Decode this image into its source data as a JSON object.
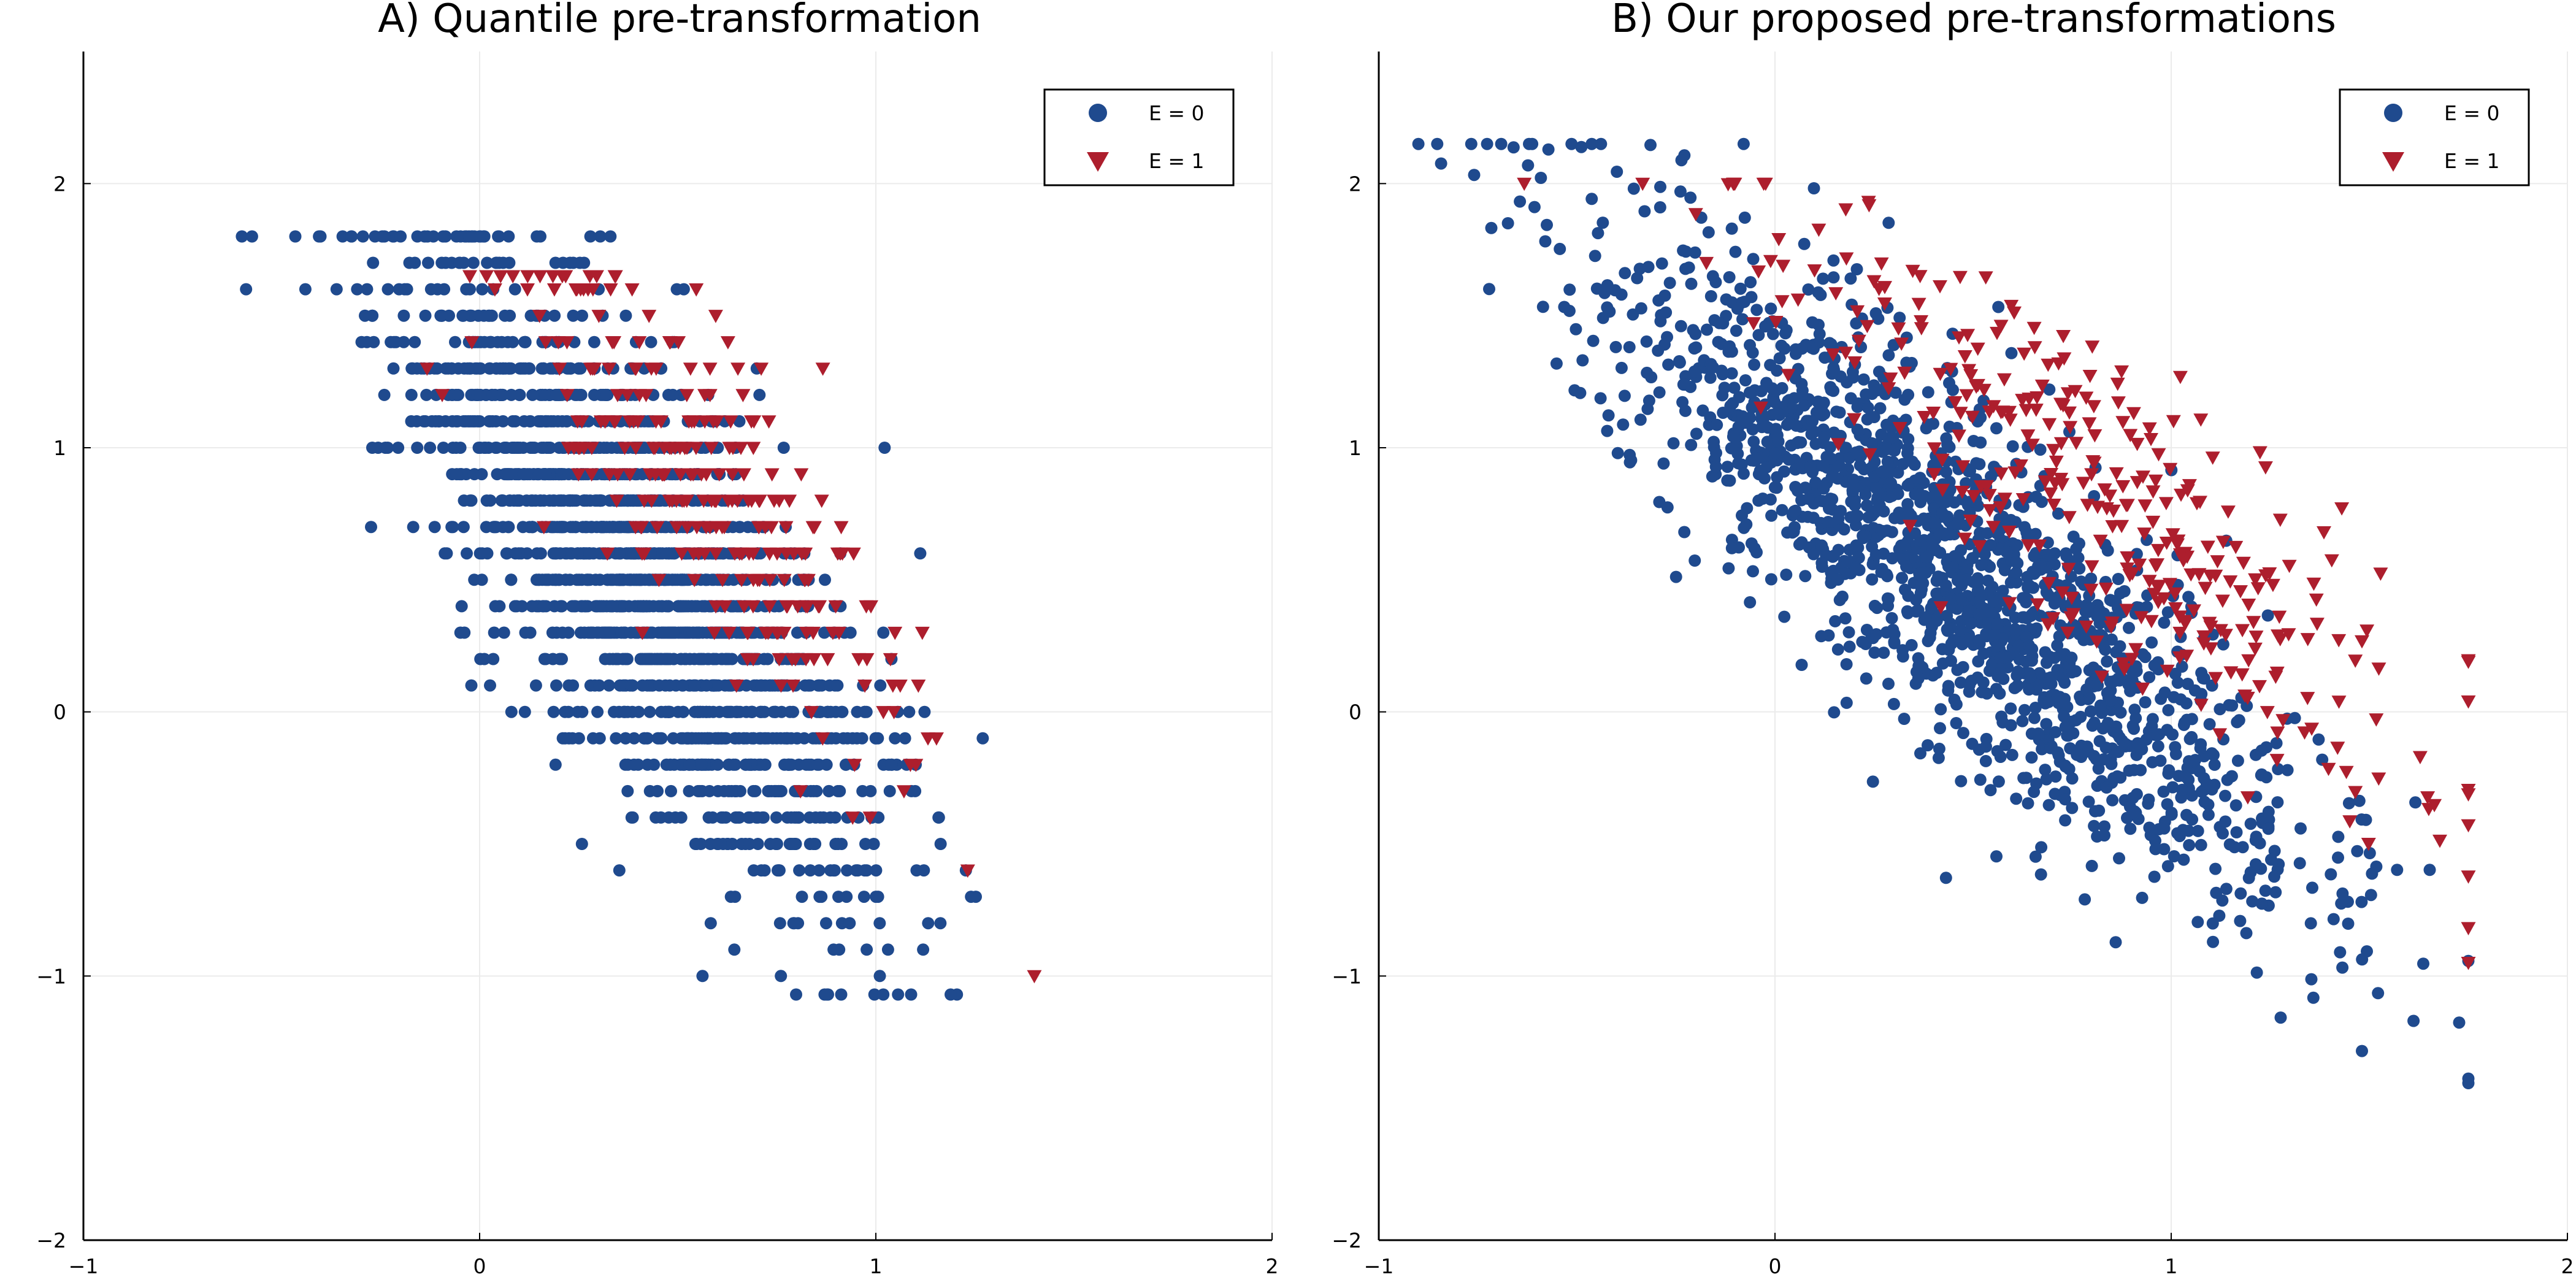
{
  "figure": {
    "background": "#ffffff"
  },
  "colors": {
    "e0": "#1f4a8e",
    "e1": "#ad1e2d"
  },
  "chart_data": [
    {
      "type": "scatter",
      "title": "A) Quantile pre-transformation",
      "xlabel": "",
      "ylabel": "",
      "xlim": [
        -1,
        2
      ],
      "ylim": [
        -2,
        2.5
      ],
      "xticks": [
        -1,
        0,
        1,
        2
      ],
      "xtick_labels": [
        "−1",
        "0",
        "1",
        "2"
      ],
      "yticks": [
        -2,
        -1,
        0,
        1,
        2
      ],
      "ytick_labels": [
        "−2",
        "−1",
        "0",
        "1",
        "2"
      ],
      "grid": true,
      "legend_position": "top-right",
      "series": [
        {
          "name": "E = 0",
          "marker": "circle",
          "color": "#1f4a8e",
          "generator": {
            "n": 1900,
            "seed": 11,
            "x_mean": 0.4,
            "x_sd": 0.3,
            "slope": -1.55,
            "noise_sd": 0.4,
            "quantize": 0.1,
            "x_clip": [
              -0.6,
              1.3
            ],
            "y_clip": [
              -1.07,
              1.8
            ]
          }
        },
        {
          "name": "E = 1",
          "marker": "triangle-down",
          "color": "#ad1e2d",
          "generator": {
            "n": 280,
            "seed": 23,
            "x_mean": 0.55,
            "x_sd": 0.25,
            "slope": -1.55,
            "noise_sd": 0.3,
            "y_offset": 0.3,
            "quantize": 0.1,
            "x_clip": [
              -0.45,
              1.4
            ],
            "y_clip": [
              -1.0,
              1.65
            ]
          }
        }
      ]
    },
    {
      "type": "scatter",
      "title": "B) Our proposed pre-transformations",
      "xlabel": "",
      "ylabel": "",
      "xlim": [
        -1,
        2
      ],
      "ylim": [
        -2,
        2.5
      ],
      "xticks": [
        -1,
        0,
        1,
        2
      ],
      "xtick_labels": [
        "−1",
        "0",
        "1",
        "2"
      ],
      "yticks": [
        -2,
        -1,
        0,
        1,
        2
      ],
      "ytick_labels": [
        "−2",
        "−1",
        "0",
        "1",
        "2"
      ],
      "grid": true,
      "legend_position": "top-right",
      "series": [
        {
          "name": "E = 0",
          "marker": "circle",
          "color": "#1f4a8e",
          "generator": {
            "n": 1700,
            "seed": 37,
            "x_mean": 0.45,
            "x_sd": 0.45,
            "slope": -1.2,
            "noise_sd": 0.33,
            "x_clip": [
              -0.9,
              1.75
            ],
            "y_clip": [
              -1.55,
              2.15
            ]
          }
        },
        {
          "name": "E = 1",
          "marker": "triangle-down",
          "color": "#ad1e2d",
          "generator": {
            "n": 350,
            "seed": 53,
            "x_mean": 0.8,
            "x_sd": 0.42,
            "slope": -1.2,
            "noise_sd": 0.3,
            "y_offset": 0.25,
            "x_clip": [
              -0.7,
              1.75
            ],
            "y_clip": [
              -1.25,
              2.0
            ]
          }
        }
      ]
    }
  ]
}
